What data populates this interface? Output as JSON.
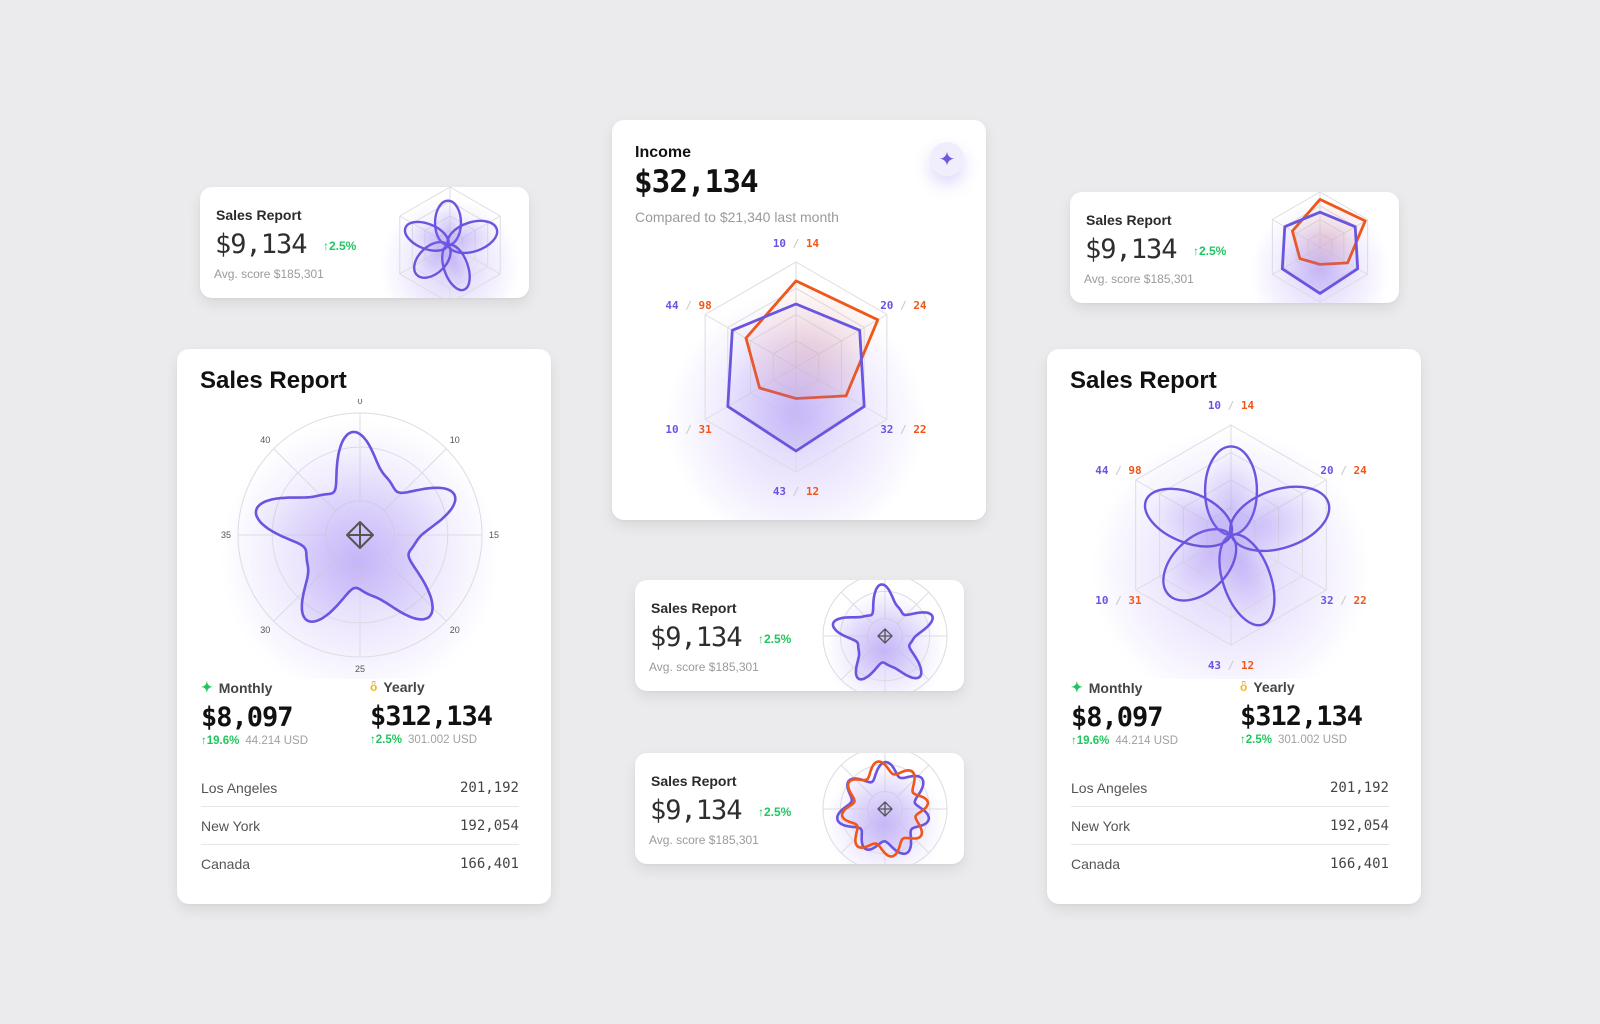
{
  "colors": {
    "purple": "#6a55e0",
    "orange": "#f0561a",
    "green": "#22c55e",
    "gold": "#f5b324",
    "grid": "#dcdce2"
  },
  "small_cards": [
    {
      "title": "Sales Report",
      "value": "$9,134",
      "change": "↑2.5%",
      "avg": "Avg. score $185,301",
      "chart": "flower"
    },
    {
      "title": "Sales Report",
      "value": "$9,134",
      "change": "↑2.5%",
      "avg": "Avg. score $185,301",
      "chart": "hexagon"
    },
    {
      "title": "Sales Report",
      "value": "$9,134",
      "change": "↑2.5%",
      "avg": "Avg. score $185,301",
      "chart": "star"
    },
    {
      "title": "Sales Report",
      "value": "$9,134",
      "change": "↑2.5%",
      "avg": "Avg. score $185,301",
      "chart": "wave"
    }
  ],
  "income": {
    "title": "Income",
    "value": "$32,134",
    "compare": "Compared to $21,340 last month",
    "icon": "sparkle-icon",
    "axes": [
      [
        "10",
        "14"
      ],
      [
        "20",
        "24"
      ],
      [
        "32",
        "22"
      ],
      [
        "43",
        "12"
      ],
      [
        "10",
        "31"
      ],
      [
        "44",
        "98"
      ]
    ]
  },
  "big_cards": [
    {
      "title": "Sales Report",
      "chart": "star",
      "ticks": [
        "0",
        "10",
        "15",
        "20",
        "25",
        "30",
        "35",
        "40"
      ],
      "monthly": {
        "label": "Monthly",
        "icon": "sparkle-icon",
        "value": "$8,097",
        "change": "↑19.6%",
        "usd": "44.214 USD"
      },
      "yearly": {
        "label": "Yearly",
        "icon": "medal-icon",
        "value": "$312,134",
        "change": "↑2.5%",
        "usd": "301.002 USD"
      },
      "rows": [
        {
          "name": "Los Angeles",
          "value": "201,192"
        },
        {
          "name": "New York",
          "value": "192,054"
        },
        {
          "name": "Canada",
          "value": "166,401"
        }
      ]
    },
    {
      "title": "Sales Report",
      "chart": "flower",
      "axes": [
        [
          "10",
          "14"
        ],
        [
          "20",
          "24"
        ],
        [
          "32",
          "22"
        ],
        [
          "43",
          "12"
        ],
        [
          "10",
          "31"
        ],
        [
          "44",
          "98"
        ]
      ],
      "monthly": {
        "label": "Monthly",
        "icon": "sparkle-icon",
        "value": "$8,097",
        "change": "↑19.6%",
        "usd": "44.214 USD"
      },
      "yearly": {
        "label": "Yearly",
        "icon": "medal-icon",
        "value": "$312,134",
        "change": "↑2.5%",
        "usd": "301.002 USD"
      },
      "rows": [
        {
          "name": "Los Angeles",
          "value": "201,192"
        },
        {
          "name": "New York",
          "value": "192,054"
        },
        {
          "name": "Canada",
          "value": "166,401"
        }
      ]
    }
  ]
}
